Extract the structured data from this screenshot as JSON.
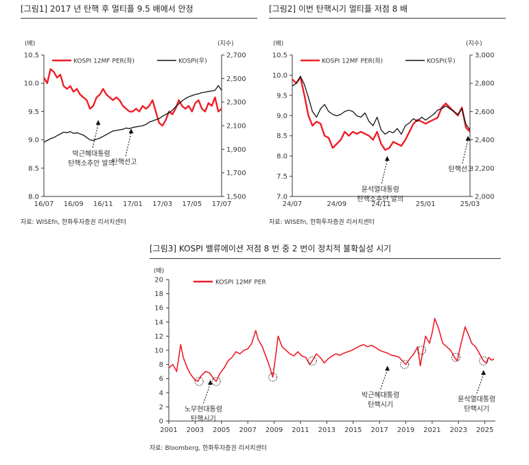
{
  "figures": [
    {
      "id": "fig1",
      "title": "[그림1]    2017 년 탄핵 후 멀티플 9.5 배에서 안정",
      "source": "자료: WISEfn, 한화투자증권 리서치센터"
    },
    {
      "id": "fig2",
      "title": "[그림2]    이번 탄핵시기 멀티플 저점 8 배",
      "source": "자료: WISEfn, 한화투자증권 리서치센터"
    },
    {
      "id": "fig3",
      "title": "[그림3]    KOSPI 밸류에이션 저점 8 번 중 2 번이 정치적 불확실성 시기",
      "source": "자료: Bloomberg, 한화투자증권 리서치센터"
    }
  ],
  "colors": {
    "per": "#ee1c25",
    "kospi": "#111111",
    "axis": "#333333"
  },
  "chart_data": [
    {
      "type": "line",
      "left_unit": "(배)",
      "right_unit": "(지수)",
      "x_ticks": [
        "16/07",
        "16/09",
        "16/11",
        "17/01",
        "17/03",
        "17/05",
        "17/07"
      ],
      "ylim_left": [
        8.0,
        10.5
      ],
      "yticks_left": [
        "8.0",
        "8.5",
        "9.0",
        "9.5",
        "10.0",
        "10.5"
      ],
      "ylim_right": [
        1500,
        2700
      ],
      "yticks_right": [
        "1,500",
        "1,700",
        "1,900",
        "2,100",
        "2,300",
        "2,500",
        "2,700"
      ],
      "xlim": [
        0,
        54
      ],
      "series": [
        {
          "name": "KOSPI 12MF PER(좌)",
          "axis": "left",
          "x": [
            0,
            1,
            2,
            3,
            4,
            5,
            6,
            7,
            8,
            9,
            10,
            11,
            12,
            13,
            14,
            15,
            16,
            17,
            18,
            19,
            20,
            21,
            22,
            23,
            24,
            25,
            26,
            27,
            28,
            29,
            30,
            31,
            32,
            33,
            34,
            35,
            36,
            37,
            38,
            39,
            40,
            41,
            42,
            43,
            44,
            45,
            46,
            47,
            48,
            49,
            50,
            51,
            52,
            53,
            54
          ],
          "values": [
            10.1,
            10.0,
            10.25,
            10.2,
            10.1,
            10.15,
            9.95,
            9.9,
            9.95,
            9.85,
            9.9,
            9.8,
            9.75,
            9.7,
            9.55,
            9.6,
            9.75,
            9.8,
            9.9,
            9.8,
            9.75,
            9.7,
            9.75,
            9.7,
            9.6,
            9.55,
            9.5,
            9.5,
            9.55,
            9.5,
            9.6,
            9.55,
            9.6,
            9.7,
            9.5,
            9.3,
            9.25,
            9.35,
            9.5,
            9.45,
            9.55,
            9.7,
            9.6,
            9.55,
            9.6,
            9.5,
            9.65,
            9.7,
            9.55,
            9.5,
            9.65,
            9.6,
            9.75,
            9.5,
            9.55
          ]
        },
        {
          "name": "KOSPI(우)",
          "axis": "right",
          "x": [
            0,
            1,
            2,
            3,
            4,
            5,
            6,
            7,
            8,
            9,
            10,
            11,
            12,
            13,
            14,
            15,
            16,
            17,
            18,
            19,
            20,
            21,
            22,
            23,
            24,
            25,
            26,
            27,
            28,
            29,
            30,
            31,
            32,
            33,
            34,
            35,
            36,
            37,
            38,
            39,
            40,
            41,
            42,
            43,
            44,
            45,
            46,
            47,
            48,
            49,
            50,
            51,
            52,
            53,
            54
          ],
          "values": [
            1960,
            1975,
            1990,
            2000,
            2015,
            2030,
            2045,
            2040,
            2050,
            2035,
            2040,
            2030,
            2020,
            2000,
            1980,
            1975,
            1985,
            1995,
            2010,
            2025,
            2040,
            2055,
            2060,
            2065,
            2070,
            2080,
            2075,
            2085,
            2090,
            2095,
            2100,
            2110,
            2130,
            2140,
            2150,
            2160,
            2180,
            2195,
            2210,
            2230,
            2260,
            2285,
            2310,
            2330,
            2345,
            2355,
            2365,
            2370,
            2380,
            2385,
            2390,
            2395,
            2400,
            2440,
            2400
          ]
        }
      ],
      "annotations": [
        {
          "lines": [
            "박근혜대통령",
            "탄핵소추안 발의"
          ],
          "x": 16.5,
          "y": 9.35
        },
        {
          "lines": [
            "탄핵선고"
          ],
          "x": 26.5,
          "y": 9.2
        }
      ]
    },
    {
      "type": "line",
      "left_unit": "(배)",
      "right_unit": "(지수)",
      "x_ticks": [
        "24/07",
        "24/09",
        "24/11",
        "25/01",
        "25/03"
      ],
      "ylim_left": [
        7.0,
        10.5
      ],
      "yticks_left": [
        "7.0",
        "7.5",
        "8.0",
        "8.5",
        "9.0",
        "9.5",
        "10.0",
        "10.5"
      ],
      "ylim_right": [
        2000,
        3000
      ],
      "yticks_right": [
        "2,000",
        "2,200",
        "2,400",
        "2,600",
        "2,800",
        "3,000"
      ],
      "xlim": [
        0,
        44
      ],
      "series": [
        {
          "name": "KOSPI 12MF PER(좌)",
          "axis": "left",
          "x": [
            0,
            1,
            2,
            3,
            4,
            5,
            6,
            7,
            8,
            9,
            10,
            11,
            12,
            13,
            14,
            15,
            16,
            17,
            18,
            19,
            20,
            21,
            22,
            23,
            24,
            25,
            26,
            27,
            28,
            29,
            30,
            31,
            32,
            33,
            34,
            35,
            36,
            37,
            38,
            39,
            40,
            41,
            42,
            43,
            44
          ],
          "values": [
            9.9,
            9.8,
            9.95,
            9.5,
            9.0,
            8.75,
            8.85,
            8.8,
            8.5,
            8.45,
            8.2,
            8.3,
            8.4,
            8.6,
            8.5,
            8.6,
            8.55,
            8.6,
            8.55,
            8.5,
            8.4,
            8.6,
            8.3,
            8.15,
            8.2,
            8.35,
            8.3,
            8.25,
            8.4,
            8.6,
            8.8,
            8.9,
            8.85,
            8.8,
            8.85,
            8.9,
            8.95,
            9.2,
            9.3,
            9.2,
            9.1,
            9.0,
            9.2,
            8.7,
            8.6
          ]
        },
        {
          "name": "KOSPI(우)",
          "axis": "right",
          "x": [
            0,
            1,
            2,
            3,
            4,
            5,
            6,
            7,
            8,
            9,
            10,
            11,
            12,
            13,
            14,
            15,
            16,
            17,
            18,
            19,
            20,
            21,
            22,
            23,
            24,
            25,
            26,
            27,
            28,
            29,
            30,
            31,
            32,
            33,
            34,
            35,
            36,
            37,
            38,
            39,
            40,
            41,
            42,
            43,
            44
          ],
          "values": [
            2780,
            2800,
            2850,
            2790,
            2700,
            2600,
            2560,
            2620,
            2650,
            2600,
            2580,
            2570,
            2580,
            2600,
            2610,
            2600,
            2570,
            2560,
            2590,
            2530,
            2500,
            2560,
            2470,
            2440,
            2460,
            2450,
            2480,
            2440,
            2500,
            2520,
            2550,
            2530,
            2560,
            2540,
            2560,
            2580,
            2610,
            2620,
            2640,
            2620,
            2600,
            2580,
            2620,
            2510,
            2470
          ]
        }
      ],
      "annotations": [
        {
          "lines": [
            "윤석열대통령",
            "탄핵소추안 발의"
          ],
          "x": 23.5,
          "y": 8.0
        },
        {
          "lines": [
            "탄핵선고"
          ],
          "x": 43.5,
          "y": 8.5
        }
      ]
    },
    {
      "type": "line",
      "left_unit": "(배)",
      "x_ticks": [
        "2001",
        "2003",
        "2005",
        "2007",
        "2009",
        "2011",
        "2013",
        "2015",
        "2017",
        "2019",
        "2021",
        "2023",
        "2025"
      ],
      "ylim": [
        0,
        20
      ],
      "yticks": [
        "0",
        "2",
        "4",
        "6",
        "8",
        "10",
        "12",
        "14",
        "16",
        "18",
        "20"
      ],
      "xlim": [
        2001,
        2025.8
      ],
      "series": [
        {
          "name": "KOSPI 12MF PER",
          "x": [
            2001.0,
            2001.3,
            2001.6,
            2001.9,
            2002.1,
            2002.4,
            2002.7,
            2003.0,
            2003.2,
            2003.5,
            2003.8,
            2004.1,
            2004.4,
            2004.6,
            2004.9,
            2005.2,
            2005.5,
            2005.8,
            2006.1,
            2006.4,
            2006.7,
            2007.0,
            2007.3,
            2007.6,
            2007.8,
            2008.1,
            2008.3,
            2008.6,
            2008.9,
            2009.1,
            2009.3,
            2009.6,
            2009.9,
            2010.2,
            2010.5,
            2010.8,
            2011.1,
            2011.4,
            2011.7,
            2011.9,
            2012.2,
            2012.5,
            2012.8,
            2013.1,
            2013.4,
            2013.7,
            2014.0,
            2014.3,
            2014.6,
            2014.9,
            2015.2,
            2015.5,
            2015.8,
            2016.1,
            2016.4,
            2016.7,
            2017.0,
            2017.3,
            2017.6,
            2017.9,
            2018.2,
            2018.5,
            2018.8,
            2019.0,
            2019.3,
            2019.6,
            2019.9,
            2020.1,
            2020.3,
            2020.5,
            2020.8,
            2021.0,
            2021.2,
            2021.5,
            2021.8,
            2022.1,
            2022.4,
            2022.7,
            2022.9,
            2023.2,
            2023.5,
            2023.8,
            2024.0,
            2024.3,
            2024.6,
            2024.9,
            2025.1,
            2025.3,
            2025.5,
            2025.7
          ],
          "values": [
            7.5,
            8.0,
            7.0,
            10.8,
            9.0,
            7.5,
            6.5,
            5.8,
            5.6,
            6.5,
            7.0,
            6.8,
            6.0,
            5.6,
            6.8,
            7.5,
            8.5,
            9.0,
            9.8,
            9.5,
            10.0,
            10.2,
            11.0,
            12.8,
            11.5,
            10.5,
            9.5,
            8.0,
            6.2,
            9.0,
            12.0,
            10.5,
            10.0,
            9.5,
            9.2,
            9.8,
            9.2,
            9.0,
            8.0,
            8.5,
            9.5,
            9.0,
            8.2,
            8.8,
            9.2,
            9.5,
            9.3,
            9.6,
            9.8,
            10.0,
            10.3,
            10.6,
            10.8,
            10.5,
            10.7,
            10.4,
            10.0,
            9.8,
            9.6,
            9.3,
            9.2,
            9.0,
            8.4,
            8.0,
            8.8,
            9.5,
            10.5,
            7.8,
            10.0,
            12.0,
            11.0,
            12.5,
            14.5,
            13.0,
            11.0,
            10.5,
            10.0,
            9.0,
            8.5,
            11.0,
            13.3,
            12.0,
            11.0,
            10.5,
            9.5,
            8.5,
            8.2,
            9.0,
            8.6,
            8.8
          ]
        }
      ],
      "lows": [
        2003.3,
        2004.6,
        2008.9,
        2011.9,
        2018.9,
        2020.2,
        2022.8,
        2024.9
      ],
      "annotations": [
        {
          "lines": [
            "노무현대통령",
            "탄핵시기"
          ],
          "x": 2004.15,
          "y": 6.2
        },
        {
          "lines": [
            "박근혜대통령",
            "탄핵시기"
          ],
          "x": 2017.6,
          "y": 8.2
        },
        {
          "lines": [
            "윤석열대통령",
            "탄핵시기"
          ],
          "x": 2024.9,
          "y": 7.6
        }
      ]
    }
  ]
}
